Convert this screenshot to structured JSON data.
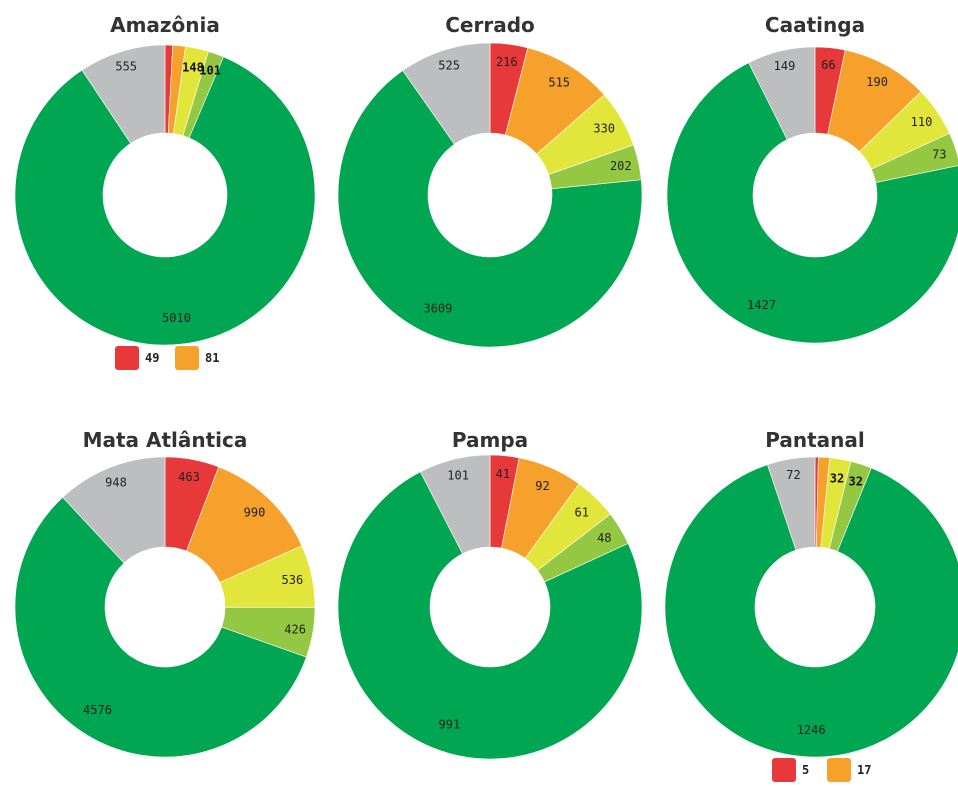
{
  "chart_data": [
    {
      "type": "pie",
      "title": "Amazônia",
      "categories": [
        "red",
        "orange",
        "yellow",
        "lightgreen",
        "green",
        "gray"
      ],
      "values": [
        49,
        81,
        148,
        101,
        5010,
        555
      ],
      "legend_values": [
        49,
        81
      ],
      "label_style": [
        "hidden",
        "hidden",
        "bold",
        "bold",
        "normal",
        "normal"
      ]
    },
    {
      "type": "pie",
      "title": "Cerrado",
      "categories": [
        "red",
        "orange",
        "yellow",
        "lightgreen",
        "green",
        "gray"
      ],
      "values": [
        216,
        515,
        330,
        202,
        3609,
        525
      ],
      "legend_values": [],
      "label_style": [
        "normal",
        "normal",
        "normal",
        "normal",
        "normal",
        "normal"
      ]
    },
    {
      "type": "pie",
      "title": "Caatinga",
      "categories": [
        "red",
        "orange",
        "yellow",
        "lightgreen",
        "green",
        "gray"
      ],
      "values": [
        66,
        190,
        110,
        73,
        1427,
        149
      ],
      "legend_values": [],
      "label_style": [
        "normal",
        "normal",
        "normal",
        "normal",
        "normal",
        "normal"
      ]
    },
    {
      "type": "pie",
      "title": "Mata Atlântica",
      "categories": [
        "red",
        "orange",
        "yellow",
        "lightgreen",
        "green",
        "gray"
      ],
      "values": [
        463,
        990,
        536,
        426,
        4576,
        948
      ],
      "legend_values": [],
      "label_style": [
        "normal",
        "normal",
        "normal",
        "normal",
        "normal",
        "normal"
      ]
    },
    {
      "type": "pie",
      "title": "Pampa",
      "categories": [
        "red",
        "orange",
        "yellow",
        "lightgreen",
        "green",
        "gray"
      ],
      "values": [
        41,
        92,
        61,
        48,
        991,
        101
      ],
      "legend_values": [],
      "label_style": [
        "normal",
        "normal",
        "normal",
        "normal",
        "normal",
        "normal"
      ]
    },
    {
      "type": "pie",
      "title": "Pantanal",
      "categories": [
        "red",
        "orange",
        "yellow",
        "lightgreen",
        "green",
        "gray"
      ],
      "values": [
        5,
        17,
        32,
        32,
        1246,
        72
      ],
      "legend_values": [
        5,
        17
      ],
      "label_style": [
        "hidden",
        "hidden",
        "bold",
        "bold",
        "normal",
        "normal"
      ]
    }
  ],
  "colors": {
    "red": "#e8393a",
    "orange": "#f7a12d",
    "yellow": "#e3e63a",
    "lightgreen": "#94c842",
    "green": "#00a651",
    "gray": "#bdbec0"
  }
}
